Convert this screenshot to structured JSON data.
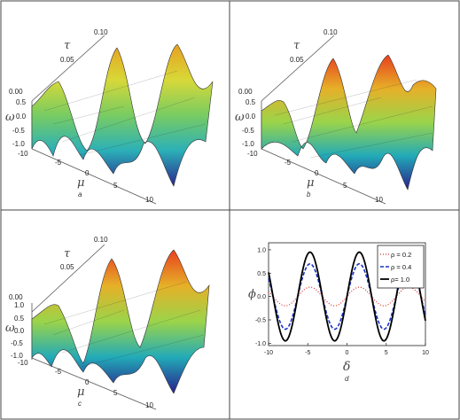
{
  "panels": {
    "a": {
      "letter": "a",
      "tau_label": "τ",
      "omega_label": "ω",
      "mu_label": "μ",
      "tau_ticks": [
        "0.10",
        "0.05",
        "0.00"
      ],
      "omega_ticks": [
        "0.5",
        "0.0",
        "-0.5",
        "-1.0"
      ],
      "mu_ticks": [
        "-10",
        "-5",
        "0",
        "5",
        "10"
      ]
    },
    "b": {
      "letter": "b",
      "tau_label": "τ",
      "omega_label": "ω",
      "mu_label": "μ",
      "tau_ticks": [
        "0.10",
        "0.05",
        "0.00"
      ],
      "omega_ticks": [
        "0.5",
        "0.0",
        "-0.5",
        "-1.0"
      ],
      "mu_ticks": [
        "-10",
        "-5",
        "0",
        "5",
        "10"
      ]
    },
    "c": {
      "letter": "c",
      "tau_label": "τ",
      "omega_label": "ω",
      "mu_label": "μ",
      "tau_ticks": [
        "0.10",
        "0.05",
        "0.00"
      ],
      "omega_ticks": [
        "1.0",
        "0.5",
        "0.0",
        "-0.5",
        "-1.0"
      ],
      "mu_ticks": [
        "-10",
        "-5",
        "0",
        "5",
        "10"
      ]
    },
    "d": {
      "letter": "d"
    }
  },
  "chart_data": {
    "type": "line",
    "xlabel": "δ",
    "ylabel": "ϕ",
    "xlim": [
      -10,
      10
    ],
    "ylim": [
      -1.05,
      1.15
    ],
    "xticks": [
      "-10",
      "-5",
      "0",
      "5",
      "10"
    ],
    "yticks": [
      "-1.0",
      "-0.5",
      "0.0",
      "0.5",
      "1.0"
    ],
    "grid": false,
    "legend_position": "top-right",
    "series": [
      {
        "name": "ρ = 0.2",
        "style": "dotted",
        "color": "#e0302a",
        "amplitude": 0.2,
        "x": [
          -10,
          -9,
          -8,
          -7,
          -6,
          -5,
          -4,
          -3,
          -2,
          -1,
          0,
          1,
          2,
          3,
          4,
          5,
          6,
          7,
          8,
          9,
          10
        ],
        "values": [
          0.11,
          0.08,
          -0.2,
          -0.13,
          0.06,
          0.2,
          0.15,
          -0.04,
          -0.19,
          -0.17,
          0.0,
          0.17,
          0.19,
          0.04,
          -0.15,
          -0.2,
          -0.06,
          0.13,
          0.2,
          0.08,
          -0.11
        ]
      },
      {
        "name": "ρ = 0.4",
        "style": "dashed",
        "color": "#1a33c8",
        "amplitude": 0.7,
        "x": [
          -10,
          -9,
          -8,
          -7,
          -6,
          -5,
          -4,
          -3,
          -2,
          -1,
          0,
          1,
          2,
          3,
          4,
          5,
          6,
          7,
          8,
          9,
          10
        ],
        "values": [
          0.38,
          0.29,
          -0.69,
          -0.46,
          0.2,
          0.67,
          0.53,
          -0.14,
          -0.64,
          -0.59,
          0.0,
          0.59,
          0.64,
          0.14,
          -0.53,
          -0.67,
          -0.2,
          0.46,
          0.69,
          0.29,
          -0.38
        ]
      },
      {
        "name": "ρ= 1.0",
        "style": "solid",
        "color": "#000000",
        "amplitude": 0.95,
        "x": [
          -10,
          -9,
          -8,
          -7,
          -6,
          -5,
          -4,
          -3,
          -2,
          -1,
          0,
          1,
          2,
          3,
          4,
          5,
          6,
          7,
          8,
          9,
          10
        ],
        "values": [
          0.52,
          0.39,
          -0.94,
          -0.62,
          0.27,
          0.91,
          0.72,
          -0.19,
          -0.86,
          -0.8,
          0.0,
          0.8,
          0.86,
          0.19,
          -0.72,
          -0.91,
          -0.27,
          0.62,
          0.94,
          0.39,
          -0.52
        ]
      }
    ]
  }
}
